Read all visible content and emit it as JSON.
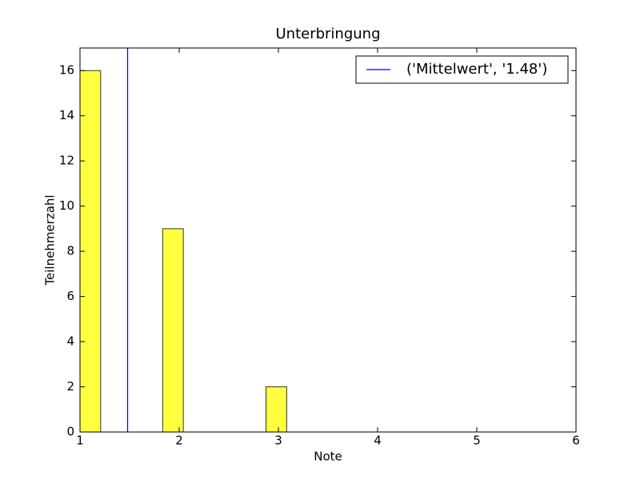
{
  "chart_data": {
    "type": "histogram",
    "title": "Unterbringung",
    "x_label": "Note",
    "y_label": "Teilnehmerzahl",
    "bins": [
      1,
      1.2083,
      1.4167,
      1.625,
      1.8333,
      2.0417,
      2.25,
      2.4583,
      2.6667,
      2.875,
      3.0833,
      3.2917,
      3.5,
      3.7083,
      3.9167,
      4.125,
      4.3333,
      4.5417,
      4.75,
      4.9583,
      5.1667,
      5.375,
      5.5833,
      5.7917,
      6
    ],
    "values": [
      16,
      0,
      0,
      0,
      9,
      0,
      0,
      0,
      0,
      2,
      0,
      0,
      0,
      0,
      0,
      0,
      0,
      0,
      0,
      0,
      0,
      0,
      0,
      0
    ],
    "color": "#ffff40",
    "mean_line": {
      "x": 1.48,
      "label": "('Mittelwert', '1.48')",
      "color": "#0000ff"
    },
    "xlim": [
      1,
      6
    ],
    "xticks": [
      1,
      2,
      3,
      4,
      5,
      6
    ],
    "ylim": [
      0,
      17
    ],
    "yticks": [
      0,
      2,
      4,
      6,
      8,
      10,
      12,
      14,
      16
    ],
    "grid": false,
    "legend": "upper right"
  }
}
